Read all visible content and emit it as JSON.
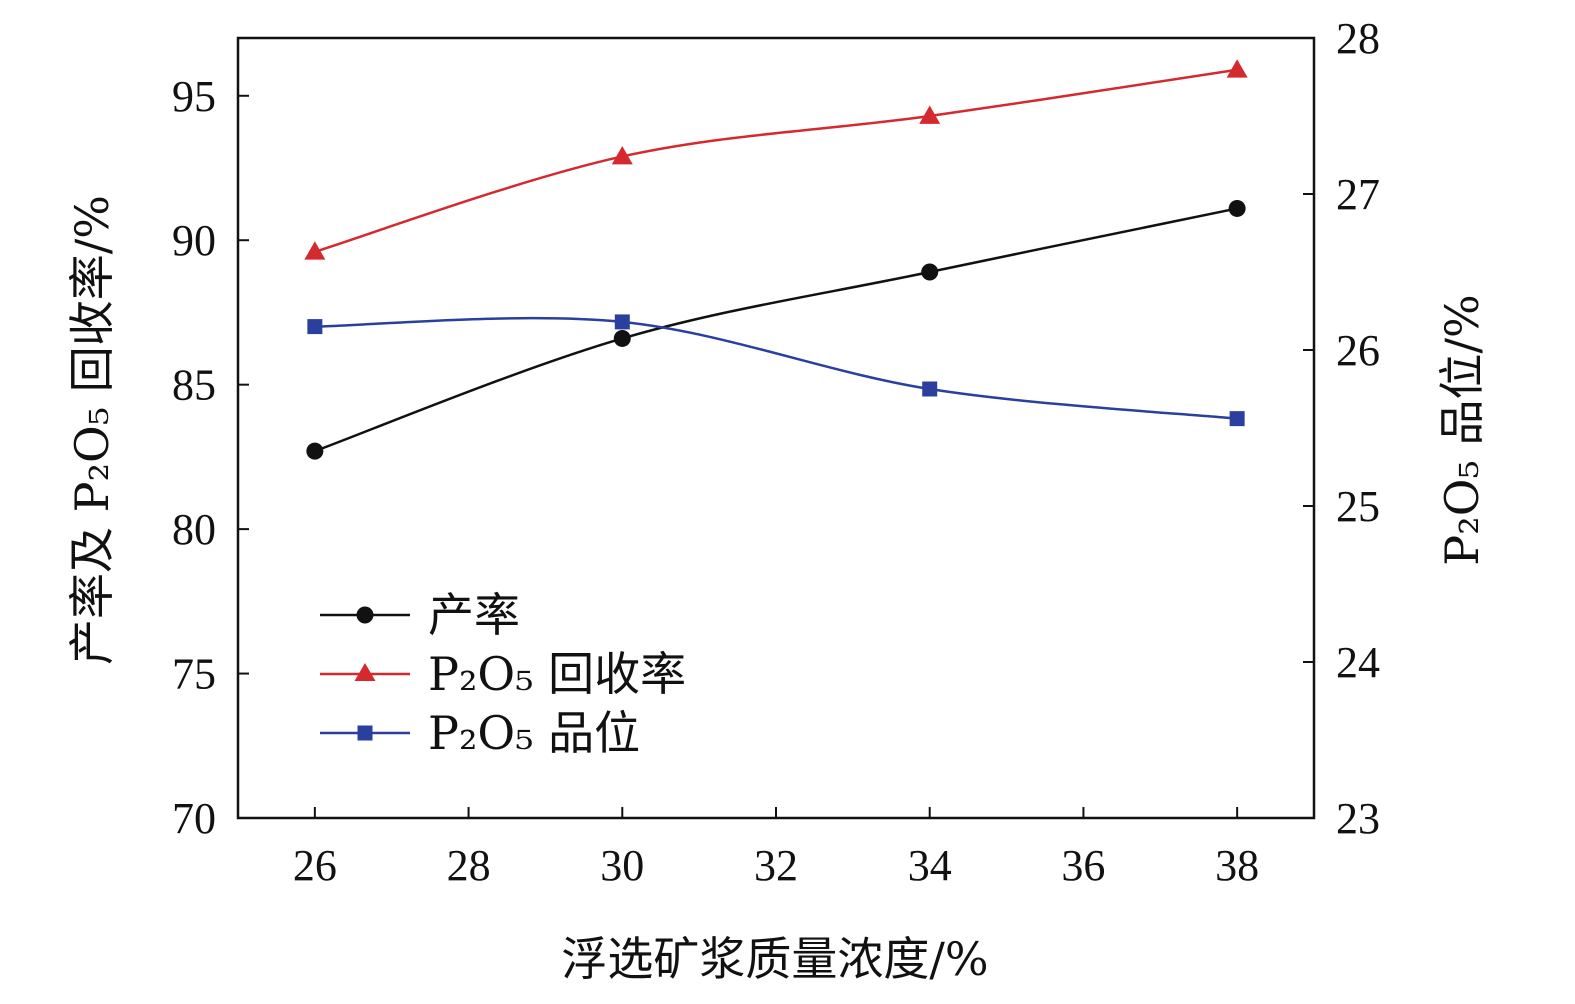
{
  "chart_data": {
    "type": "line",
    "xlabel": "浮选矿浆质量浓度/%",
    "ylabel_left": "产率及 P₂O₅ 回收率/%",
    "ylabel_right": "P₂O₅ 品位/%",
    "xlim": [
      25,
      39
    ],
    "ylim_left": [
      70,
      97
    ],
    "ylim_right": [
      23,
      28
    ],
    "x_ticks": [
      26,
      28,
      30,
      32,
      34,
      36,
      38
    ],
    "y_ticks_left": [
      70,
      75,
      80,
      85,
      90,
      95
    ],
    "y_ticks_right": [
      23,
      24,
      25,
      26,
      27,
      28
    ],
    "grid": false,
    "legend_position": "lower-left",
    "x": [
      26,
      30,
      34,
      38
    ],
    "series": [
      {
        "name": "产率",
        "axis": "left",
        "marker": "circle",
        "color": "#111111",
        "values": [
          82.7,
          86.6,
          88.9,
          91.1
        ]
      },
      {
        "name": "P₂O₅ 回收率",
        "axis": "left",
        "marker": "triangle",
        "color": "#d42a2f",
        "values": [
          89.6,
          92.9,
          94.3,
          95.9
        ]
      },
      {
        "name": "P₂O₅ 品位",
        "axis": "right",
        "marker": "square",
        "color": "#2a3f9e",
        "values": [
          26.15,
          26.18,
          25.75,
          25.56
        ]
      }
    ]
  }
}
